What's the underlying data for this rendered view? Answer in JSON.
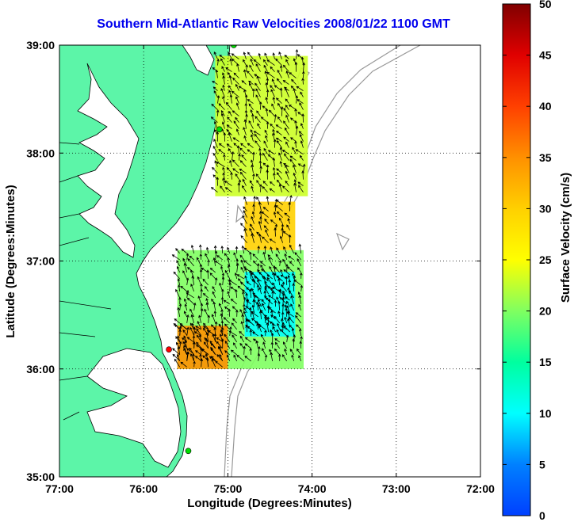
{
  "chart_data": {
    "type": "heatmap",
    "title": "Southern Mid-Atlantic Raw Velocities 2008/01/22 1100 GMT",
    "xlabel": "Longitude (Degrees:Minutes)",
    "ylabel": "Latitude (Degrees:Minutes)",
    "xlim": [
      -77,
      -72
    ],
    "ylim": [
      35,
      39
    ],
    "x_ticks": [
      "77:00",
      "76:00",
      "75:00",
      "74:00",
      "73:00",
      "72:00"
    ],
    "y_ticks": [
      "35:00",
      "36:00",
      "37:00",
      "38:00",
      "39:00"
    ],
    "grid": true,
    "colorbar": {
      "label": "Surface Velocity (cm/s)",
      "range": [
        0,
        50
      ],
      "ticks": [
        "0",
        "5",
        "10",
        "15",
        "20",
        "25",
        "30",
        "35",
        "40",
        "45",
        "50"
      ]
    },
    "stations": [
      {
        "lon": -74.93,
        "lat": 39.0,
        "color": "#00dd00"
      },
      {
        "lon": -75.1,
        "lat": 38.22,
        "color": "#00dd00"
      },
      {
        "lon": -75.7,
        "lat": 36.18,
        "color": "#ff0000"
      },
      {
        "lon": -75.47,
        "lat": 35.24,
        "color": "#00dd00"
      }
    ],
    "velocity_regions": [
      {
        "name": "northern",
        "lon": [
          -75.15,
          -74.05
        ],
        "lat": [
          37.6,
          38.9
        ],
        "speed_cm_s": 23
      },
      {
        "name": "central",
        "lon": [
          -74.8,
          -74.2
        ],
        "lat": [
          37.1,
          37.55
        ],
        "speed_cm_s": 30
      },
      {
        "name": "southern",
        "lon": [
          -75.6,
          -74.1
        ],
        "lat": [
          36.0,
          37.1
        ],
        "speed_cm_s": 20
      },
      {
        "name": "southern-offshore",
        "lon": [
          -74.8,
          -74.2
        ],
        "lat": [
          36.3,
          36.9
        ],
        "speed_cm_s": 10
      },
      {
        "name": "southern-nearshore",
        "lon": [
          -75.6,
          -75.0
        ],
        "lat": [
          36.0,
          36.4
        ],
        "speed_cm_s": 35
      }
    ]
  }
}
